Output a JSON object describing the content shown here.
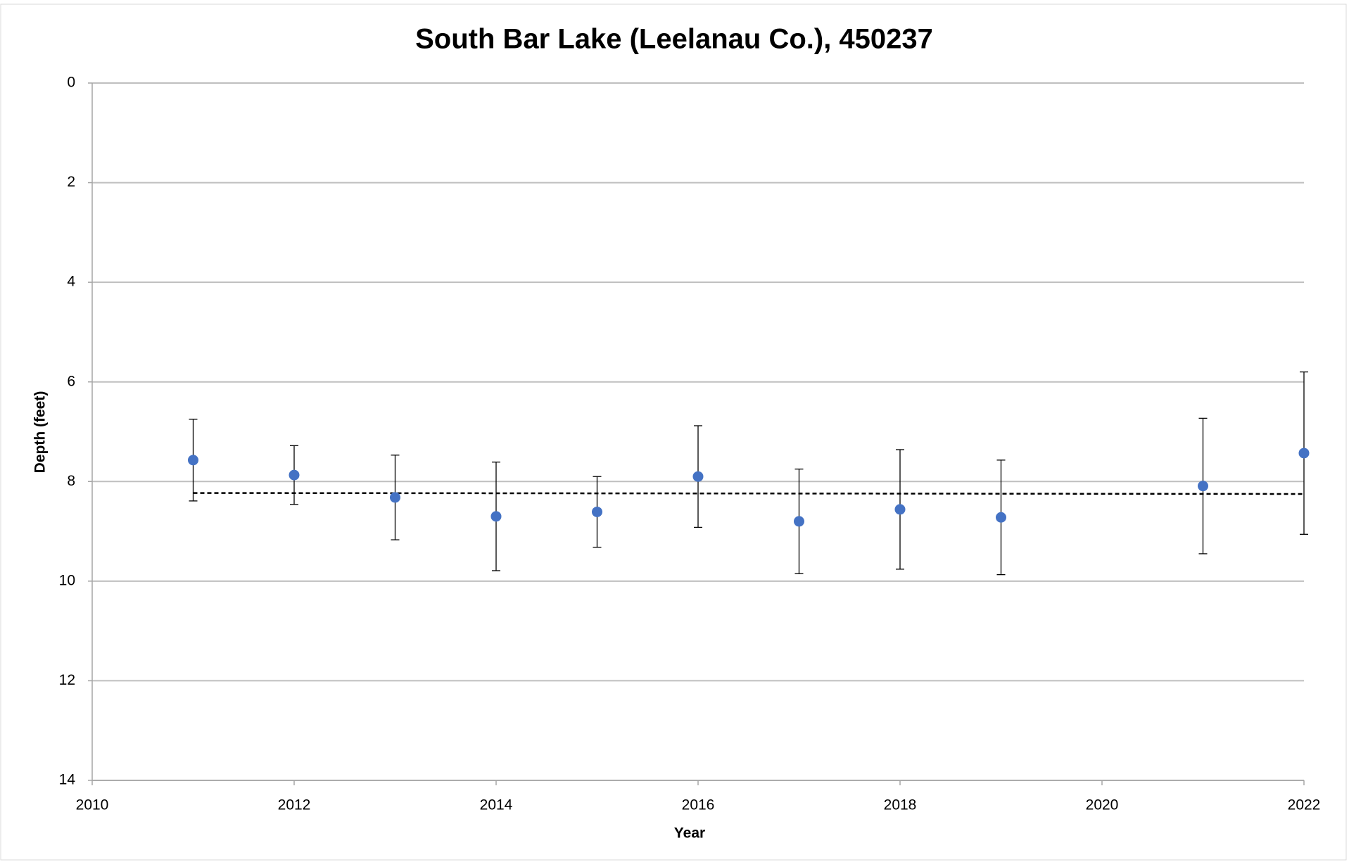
{
  "chart_data": {
    "type": "scatter",
    "title": "South Bar Lake (Leelanau Co.), 450237",
    "x_label": "Year",
    "y_label": "Depth (feet)",
    "xlim": [
      2010,
      2022
    ],
    "xticks": [
      2010,
      2012,
      2014,
      2016,
      2018,
      2020,
      2022
    ],
    "ylim": [
      0,
      14
    ],
    "yticks": [
      0,
      2,
      4,
      6,
      8,
      10,
      12,
      14
    ],
    "y_inverted": true,
    "grid": true,
    "series": [
      {
        "color": "#4472c4",
        "x": [
          2011,
          2012,
          2013,
          2014,
          2015,
          2016,
          2017,
          2018,
          2019,
          2021,
          2022
        ],
        "values": [
          7.57,
          7.87,
          8.32,
          8.7,
          8.61,
          7.9,
          8.8,
          8.56,
          8.72,
          8.09,
          7.43
        ],
        "errors": [
          0.82,
          0.59,
          0.85,
          1.09,
          0.71,
          1.02,
          1.05,
          1.2,
          1.15,
          1.36,
          1.63
        ]
      }
    ],
    "trendline": {
      "color": "#000000",
      "x": [
        2011,
        2022
      ],
      "values": [
        8.23,
        8.25
      ]
    }
  }
}
